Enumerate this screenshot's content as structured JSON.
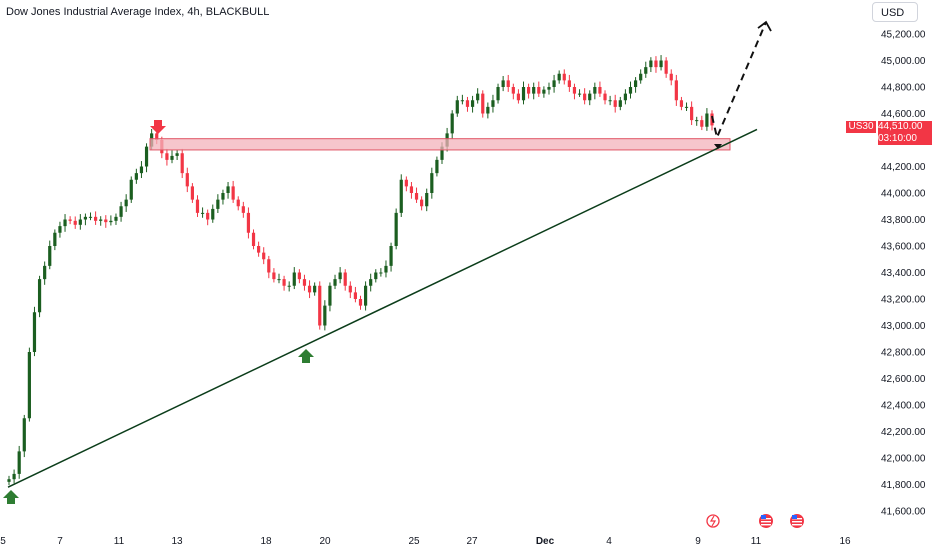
{
  "header": {
    "title": "Dow Jones Industrial Average Index, 4h, BLACKBULL",
    "currency": "USD"
  },
  "price_tag": {
    "symbol": "US30",
    "price": "44,510.00",
    "countdown": "03:10:00"
  },
  "colors": {
    "up": "#1b5e20",
    "down": "#f23645",
    "zone_fill": "#f3b3bb",
    "zone_border": "#e05767",
    "trendline": "#0b3d1a",
    "arrow_down": "#f23645",
    "arrow_up": "#2e7d32"
  },
  "icons": {
    "arrow_down": "down-arrow-icon",
    "arrow_up": "up-arrow-icon",
    "flash": "flash-icon",
    "flag": "us-flag-icon"
  },
  "chart_data": {
    "type": "candlestick",
    "title": "Dow Jones Industrial Average Index, 4h, BLACKBULL",
    "ylim": [
      41500,
      45350
    ],
    "y_ticks": [
      "45,200.00",
      "45,000.00",
      "44,800.00",
      "44,600.00",
      "44,400.00",
      "44,200.00",
      "44,000.00",
      "43,800.00",
      "43,600.00",
      "43,400.00",
      "43,200.00",
      "43,000.00",
      "42,800.00",
      "42,600.00",
      "42,400.00",
      "42,200.00",
      "42,000.00",
      "41,800.00",
      "41,600.00"
    ],
    "y_tick_values": [
      45200,
      45000,
      44800,
      44600,
      44400,
      44200,
      44000,
      43800,
      43600,
      43400,
      43200,
      43000,
      42800,
      42600,
      42400,
      42200,
      42000,
      41800,
      41600
    ],
    "x_tick_labels": [
      "5",
      "7",
      "11",
      "13",
      "18",
      "20",
      "25",
      "27",
      "Dec",
      "4",
      "9",
      "11",
      "16"
    ],
    "last_price": 44510,
    "resistance_zone": [
      44325,
      44410
    ],
    "trendline": {
      "from": {
        "date": "Nov 5",
        "price": 41780
      },
      "to": {
        "date": "Dec 11",
        "price": 44480
      }
    },
    "projection": {
      "from_price": 44420,
      "to_price": 45290
    },
    "candles_close": [
      41840,
      41880,
      42050,
      42300,
      42800,
      43100,
      43350,
      43450,
      43600,
      43700,
      43750,
      43800,
      43790,
      43760,
      43800,
      43820,
      43820,
      43790,
      43800,
      43780,
      43790,
      43820,
      43900,
      43950,
      44100,
      44150,
      44200,
      44350,
      44450,
      44400,
      44300,
      44250,
      44280,
      44300,
      44150,
      44050,
      43950,
      43850,
      43850,
      43800,
      43880,
      43950,
      44000,
      44050,
      43950,
      43900,
      43850,
      43700,
      43600,
      43550,
      43500,
      43400,
      43350,
      43350,
      43300,
      43300,
      43400,
      43350,
      43300,
      43250,
      43300,
      43000,
      43150,
      43300,
      43350,
      43400,
      43300,
      43250,
      43200,
      43150,
      43300,
      43350,
      43400,
      43400,
      43450,
      43600,
      43850,
      44100,
      44050,
      44000,
      43950,
      43900,
      44000,
      44150,
      44250,
      44350,
      44450,
      44600,
      44700,
      44700,
      44650,
      44700,
      44750,
      44600,
      44650,
      44700,
      44800,
      44850,
      44800,
      44750,
      44700,
      44800,
      44750,
      44800,
      44750,
      44780,
      44800,
      44850,
      44900,
      44850,
      44800,
      44750,
      44750,
      44700,
      44750,
      44800,
      44750,
      44700,
      44700,
      44650,
      44700,
      44750,
      44800,
      44850,
      44900,
      44950,
      45000,
      44950,
      45000,
      44900,
      44850,
      44700,
      44650,
      44650,
      44550,
      44550,
      44500,
      44600,
      44510
    ]
  }
}
